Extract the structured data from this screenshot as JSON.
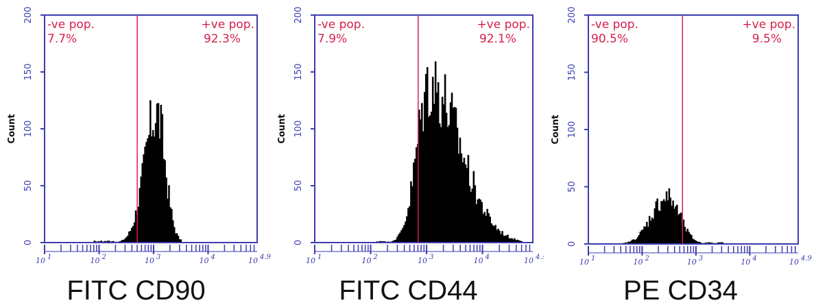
{
  "colors": {
    "axis": "#3b3bb0",
    "gate": "#d6204a",
    "bars": "#000000",
    "caption": "#111111"
  },
  "chart_data": [
    {
      "type": "histogram",
      "caption": "FITC CD90",
      "ylabel": "Count",
      "ylim": [
        0,
        200
      ],
      "y_ticks": [
        "0",
        "50",
        "100",
        "150",
        "200"
      ],
      "x_scale": "log",
      "xlim": [
        1,
        4.9
      ],
      "x_ticks": [
        {
          "label": "10",
          "exp": "1"
        },
        {
          "label": "10",
          "exp": "2"
        },
        {
          "label": "10",
          "exp": "3"
        },
        {
          "label": "10",
          "exp": "4"
        },
        {
          "label": "10",
          "exp": "4.9"
        }
      ],
      "gate_x": 2.7,
      "gate_left_label": "-ve pop.",
      "gate_left_value": "7.7%",
      "gate_right_label": "+ve pop.",
      "gate_right_value": "92.3%",
      "peak_log": 3.05,
      "peak_count": 118,
      "spread_left": 0.22,
      "spread_right": 0.16,
      "hist_range": [
        1.9,
        3.5
      ]
    },
    {
      "type": "histogram",
      "caption": "FITC CD44",
      "ylabel": "Count",
      "ylim": [
        0,
        200
      ],
      "y_ticks": [
        "0",
        "50",
        "100",
        "150",
        "200"
      ],
      "x_scale": "log",
      "xlim": [
        1,
        4.9
      ],
      "x_ticks": [
        {
          "label": "10",
          "exp": "1"
        },
        {
          "label": "10",
          "exp": "2"
        },
        {
          "label": "10",
          "exp": "3"
        },
        {
          "label": "10",
          "exp": "4"
        },
        {
          "label": "10",
          "exp": "4.:"
        }
      ],
      "gate_x": 2.85,
      "gate_left_label": "-ve pop.",
      "gate_left_value": "7.9%",
      "gate_right_label": "+ve pop.",
      "gate_right_value": "92.1%",
      "peak_log": 3.05,
      "peak_count": 145,
      "spread_left": 0.22,
      "spread_right": 0.55,
      "hist_range": [
        2.1,
        4.7
      ]
    },
    {
      "type": "histogram",
      "caption": "PE CD34",
      "ylabel": "Count",
      "ylim": [
        0,
        200
      ],
      "y_ticks": [
        "0",
        "50",
        "100",
        "150",
        "200"
      ],
      "x_scale": "log",
      "xlim": [
        1,
        4.9
      ],
      "x_ticks": [
        {
          "label": "10",
          "exp": "1"
        },
        {
          "label": "10",
          "exp": "2"
        },
        {
          "label": "10",
          "exp": "3"
        },
        {
          "label": "10",
          "exp": "4"
        },
        {
          "label": "10",
          "exp": "4.9"
        }
      ],
      "gate_x": 2.75,
      "gate_left_label": "-ve pop.",
      "gate_left_value": "90.5%",
      "gate_right_label": "+ve pop.",
      "gate_right_value": "9.5%",
      "peak_log": 2.45,
      "peak_count": 42,
      "spread_left": 0.28,
      "spread_right": 0.24,
      "hist_range": [
        1.6,
        3.5
      ]
    }
  ]
}
